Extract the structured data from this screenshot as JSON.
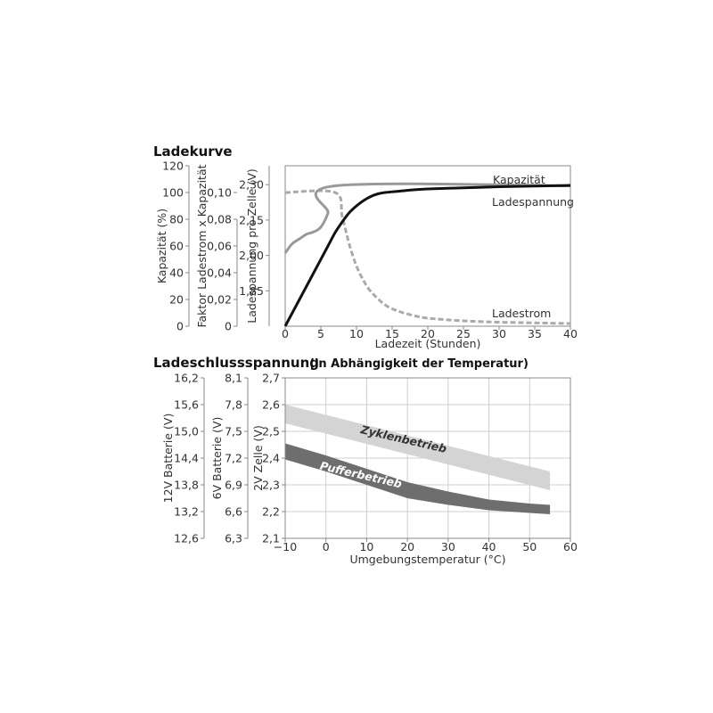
{
  "chart_data": [
    {
      "type": "line",
      "title": "Ladekurve",
      "xlabel": "Ladezeit (Stunden)",
      "xlim": [
        0,
        40
      ],
      "x_ticks": [
        "0",
        "5",
        "10",
        "15",
        "20",
        "25",
        "30",
        "35",
        "40"
      ],
      "axes": [
        {
          "label": "Kapazität (%)",
          "ticks": [
            "0",
            "20",
            "40",
            "60",
            "80",
            "100",
            "120"
          ],
          "range": [
            0,
            120
          ]
        },
        {
          "label": "Faktor Ladestrom x Kapazität",
          "ticks": [
            "0",
            "0,02",
            "0,04",
            "0,06",
            "0,08",
            "0,10"
          ],
          "range": [
            0,
            0.12
          ]
        },
        {
          "label": "Ladespannung pro Zelle (V)",
          "ticks": [
            "1,85",
            "2,00",
            "2,15",
            "2,30"
          ],
          "range": [
            1.7,
            2.38
          ]
        }
      ],
      "series": [
        {
          "name": "Kapazität",
          "axis": 0,
          "color": "#111111",
          "dash": false,
          "x": [
            0,
            2,
            4,
            6,
            7,
            8,
            9,
            10,
            11,
            12,
            13,
            14,
            16,
            18,
            20,
            25,
            30,
            35,
            40
          ],
          "y": [
            0,
            20,
            40,
            60,
            70,
            78,
            85,
            90,
            94,
            97,
            99,
            100,
            101,
            102,
            102.7,
            103.5,
            104.3,
            104.8,
            105.3
          ]
        },
        {
          "name": "Ladespannung",
          "axis": 2,
          "color": "#999999",
          "dash": false,
          "x": [
            0,
            1,
            2,
            3,
            4,
            5,
            6,
            7,
            40
          ],
          "y": [
            2.01,
            2.05,
            2.07,
            2.09,
            2.1,
            2.12,
            2.18,
            2.295,
            2.295
          ]
        },
        {
          "name": "Ladestrom",
          "axis": 1,
          "color": "#aaaaaa",
          "dash": true,
          "x": [
            0,
            7,
            8,
            9,
            10,
            11,
            12,
            14,
            16,
            18,
            20,
            25,
            30,
            35,
            40
          ],
          "y": [
            0.1,
            0.1,
            0.082,
            0.061,
            0.045,
            0.034,
            0.026,
            0.016,
            0.011,
            0.008,
            0.006,
            0.004,
            0.003,
            0.0025,
            0.002
          ]
        }
      ]
    },
    {
      "type": "area",
      "title": "Ladeschlussspannung",
      "subtitle": "(in Abhängigkeit der Temperatur)",
      "xlabel": "Umgebungstemperatur (°C)",
      "xlim": [
        -10,
        60
      ],
      "x_ticks": [
        "−10",
        "0",
        "10",
        "20",
        "30",
        "40",
        "50",
        "60"
      ],
      "grid": true,
      "axes": [
        {
          "label": "12V Batterie (V)",
          "ticks": [
            "12,6",
            "13,2",
            "13,8",
            "14,4",
            "15,0",
            "15,6",
            "16,2"
          ],
          "range": [
            12.6,
            16.2
          ]
        },
        {
          "label": "6V Batterie (V)",
          "ticks": [
            "6,3",
            "6,6",
            "6,9",
            "7,2",
            "7,5",
            "7,8",
            "8,1"
          ],
          "range": [
            6.3,
            8.1
          ]
        },
        {
          "label": "2V Zelle (V)",
          "ticks": [
            "2,1",
            "2,2",
            "2,3",
            "2,4",
            "2,5",
            "2,6",
            "2,7"
          ],
          "range": [
            2.1,
            2.7
          ]
        }
      ],
      "bands": [
        {
          "name": "Zyklenbetrieb",
          "color": "#d4d4d4",
          "x": [
            -10,
            55
          ],
          "upper": [
            2.6,
            2.35
          ],
          "lower": [
            2.53,
            2.28
          ]
        },
        {
          "name": "Pufferbetrieb",
          "color": "#6e6e6e",
          "x": [
            -10,
            0,
            10,
            20,
            30,
            40,
            50,
            55
          ],
          "upper": [
            2.455,
            2.41,
            2.36,
            2.31,
            2.275,
            2.245,
            2.23,
            2.225
          ],
          "lower": [
            2.395,
            2.35,
            2.3,
            2.25,
            2.225,
            2.205,
            2.195,
            2.19
          ]
        }
      ]
    }
  ]
}
